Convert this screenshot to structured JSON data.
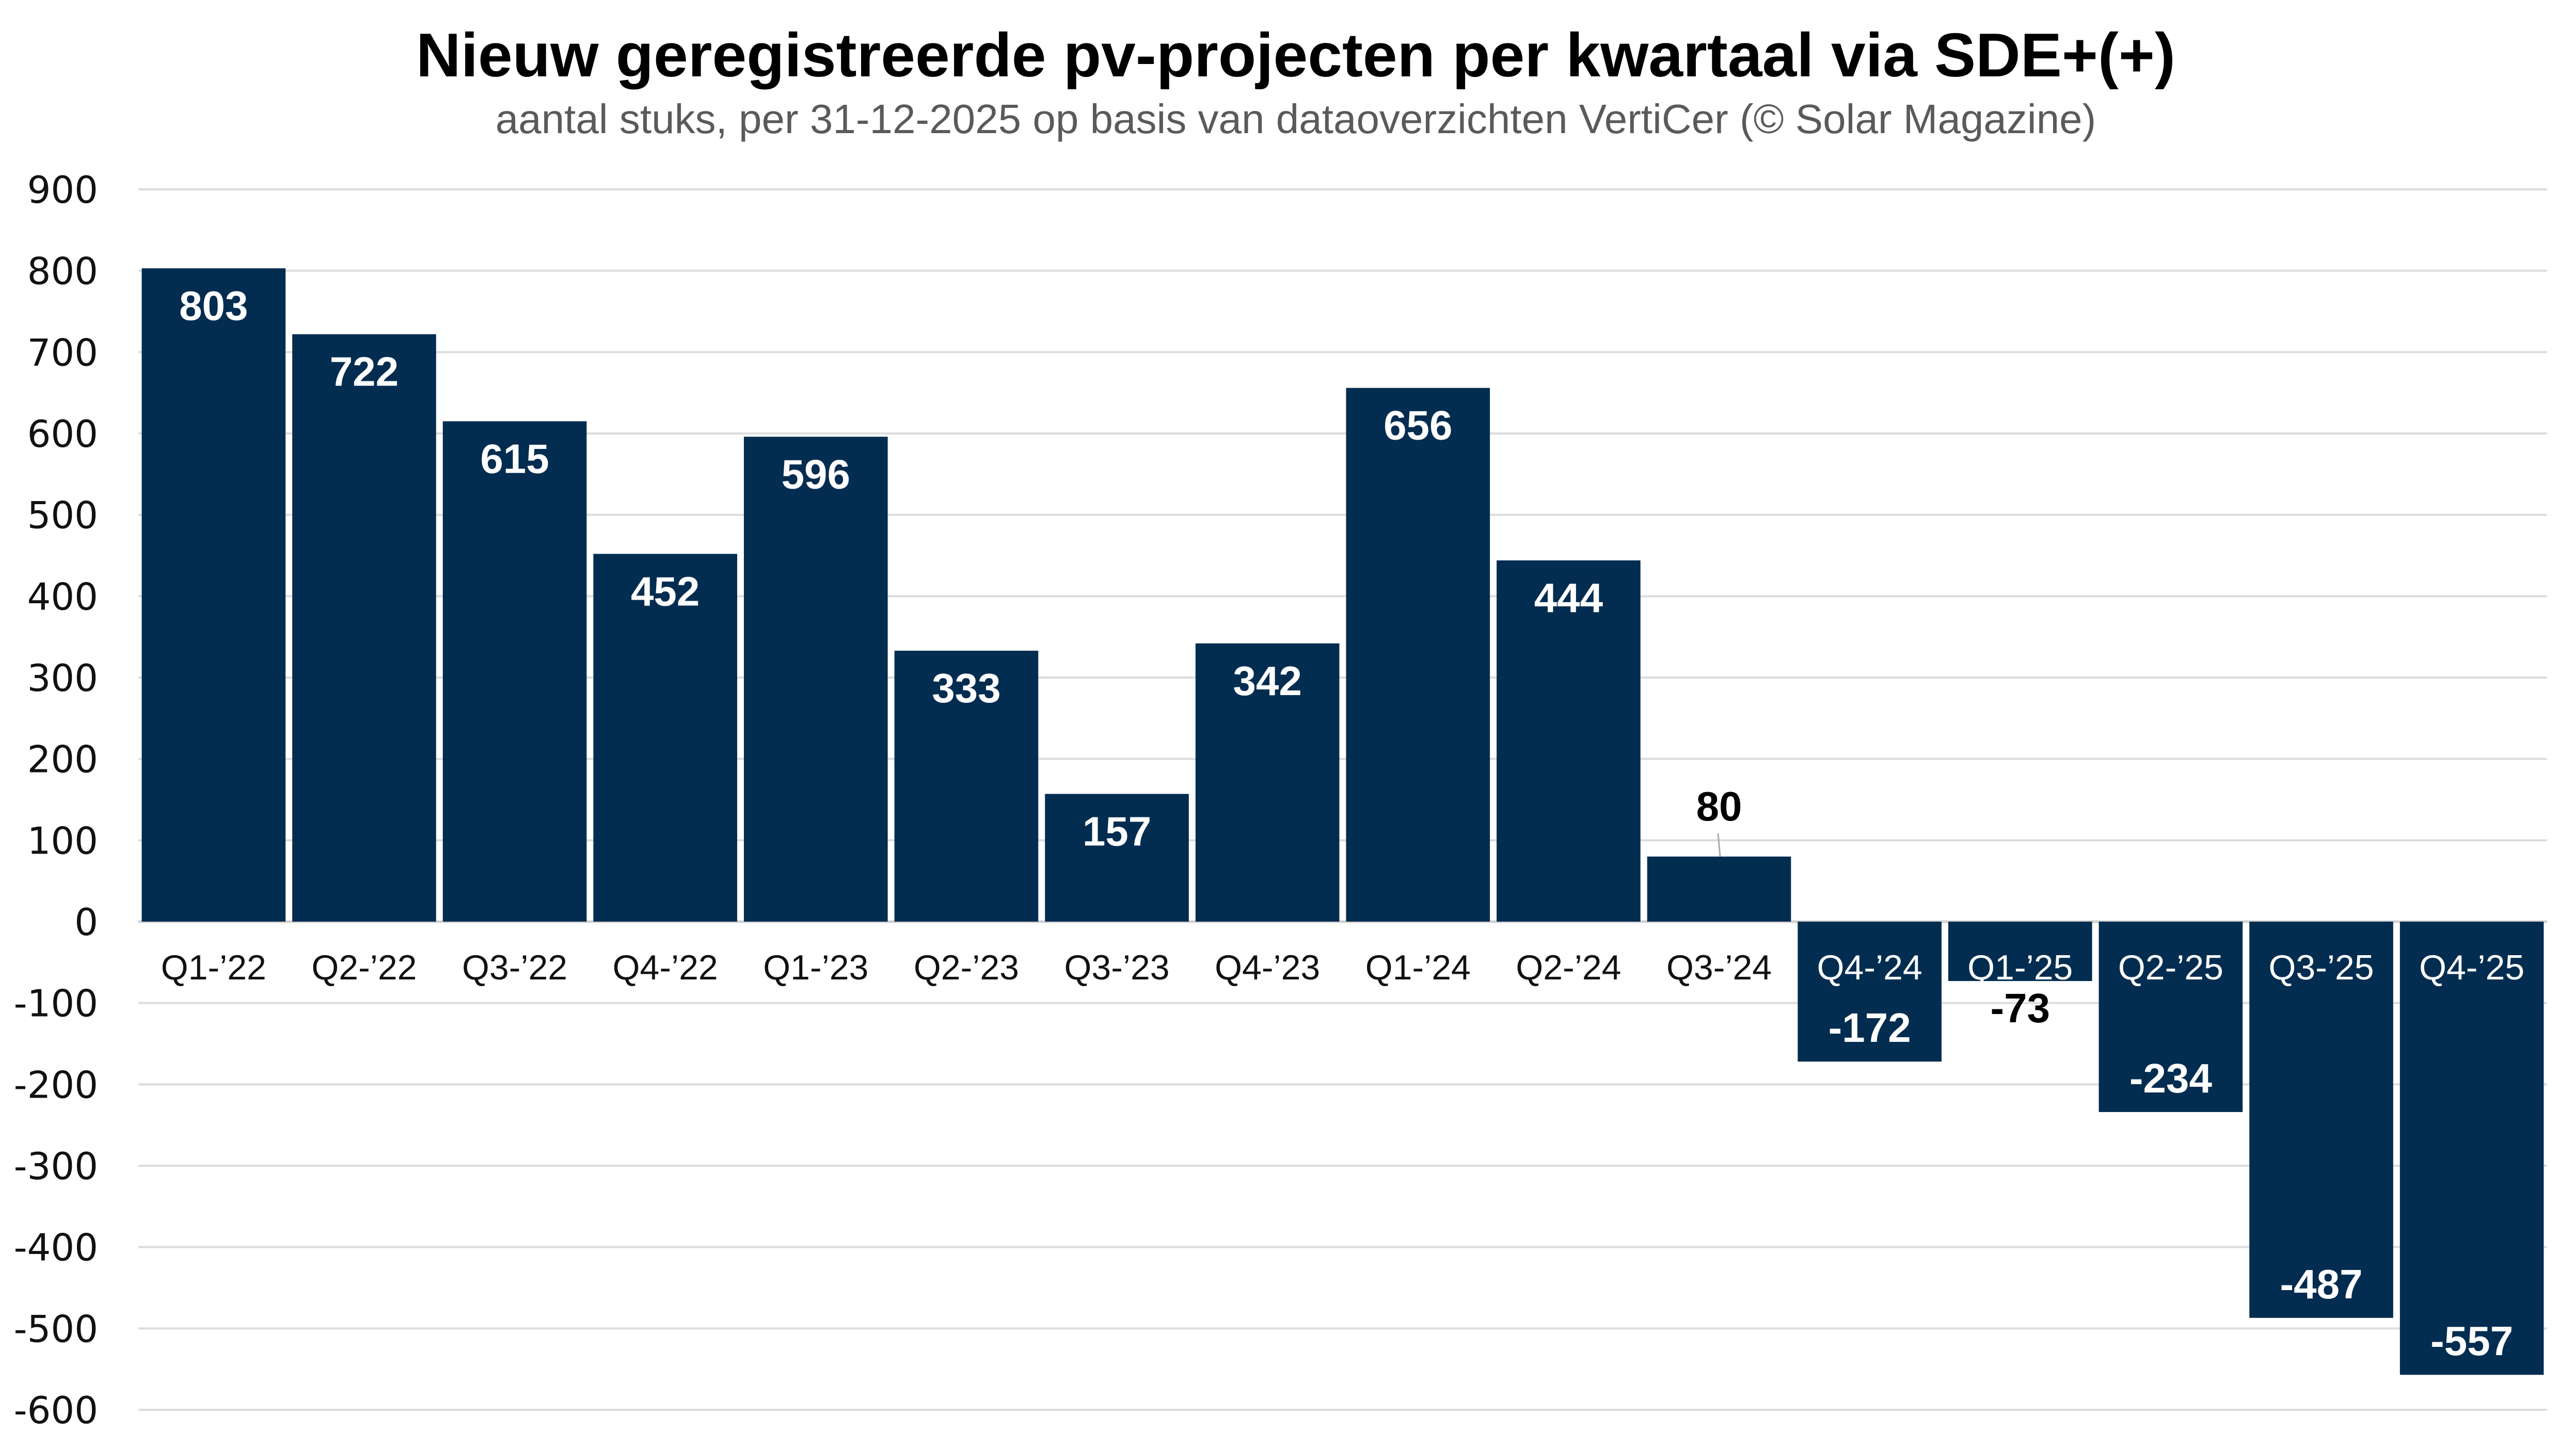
{
  "chart_data": {
    "type": "bar",
    "title": "Nieuw geregistreerde pv-projecten per kwartaal via SDE+(+)",
    "subtitle": "aantal stuks, per 31-12-2025 op basis van dataoverzichten VertiCer (© Solar Magazine)",
    "xlabel": "",
    "ylabel": "",
    "categories": [
      "Q1-’22",
      "Q2-’22",
      "Q3-’22",
      "Q4-’22",
      "Q1-’23",
      "Q2-’23",
      "Q3-’23",
      "Q4-’23",
      "Q1-’24",
      "Q2-’24",
      "Q3-’24",
      "Q4-’24",
      "Q1-’25",
      "Q2-’25",
      "Q3-’25",
      "Q4-’25"
    ],
    "values": [
      803,
      722,
      615,
      452,
      596,
      333,
      157,
      342,
      656,
      444,
      80,
      -172,
      -73,
      -234,
      -487,
      -557
    ],
    "data_labels": [
      "803",
      "722",
      "615",
      "452",
      "596",
      "333",
      "157",
      "342",
      "656",
      "444",
      "80",
      "-172",
      "-73",
      "-234",
      "-487",
      "-557"
    ],
    "ylim": [
      -600,
      900
    ],
    "yticks": [
      900,
      800,
      700,
      600,
      500,
      400,
      300,
      200,
      100,
      0,
      -100,
      -200,
      -300,
      -400,
      -500,
      -600
    ],
    "ytick_labels": [
      "900",
      "800",
      "700",
      "600",
      "500",
      "400",
      "300",
      "200",
      "100",
      "0",
      "-100",
      "-200",
      "-300",
      "-400",
      "-500",
      "-600"
    ],
    "grid": true,
    "legend": "none",
    "colors": {
      "bar": "#032d50",
      "label_on_bar": "#ffffff",
      "label_off_bar": "#000000",
      "grid": "#dcdcdc"
    }
  }
}
